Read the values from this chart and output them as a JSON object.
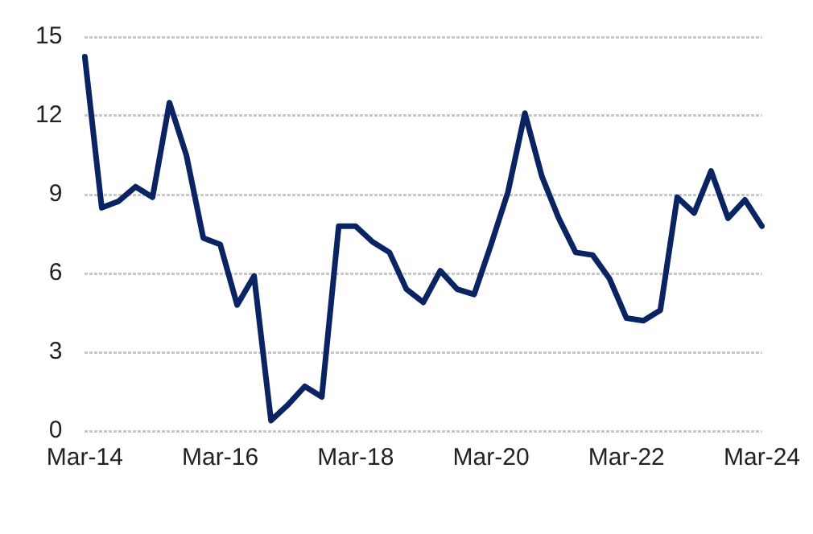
{
  "chart_data": {
    "type": "line",
    "categories": [
      "Mar-14",
      null,
      null,
      null,
      null,
      null,
      null,
      null,
      "Mar-16",
      null,
      null,
      null,
      null,
      null,
      null,
      null,
      "Mar-18",
      null,
      null,
      null,
      null,
      null,
      null,
      null,
      "Mar-20",
      null,
      null,
      null,
      null,
      null,
      null,
      null,
      "Mar-22",
      null,
      null,
      null,
      null,
      null,
      null,
      null,
      "Mar-24"
    ],
    "series": [
      {
        "color": "#0a2463",
        "values": [
          14.25,
          8.5,
          8.75,
          9.3,
          8.9,
          12.5,
          10.5,
          7.35,
          7.1,
          4.8,
          5.9,
          0.4,
          1.0,
          1.7,
          1.3,
          7.8,
          7.8,
          7.2,
          6.8,
          5.4,
          4.9,
          6.1,
          5.4,
          5.2,
          7.1,
          9.1,
          12.1,
          9.7,
          8.1,
          6.8,
          6.7,
          5.8,
          4.3,
          4.2,
          4.6,
          8.9,
          8.3,
          9.9,
          8.1,
          8.8,
          7.8
        ]
      }
    ],
    "ylim": [
      0,
      15
    ],
    "yticks": [
      0,
      3,
      6,
      9,
      12,
      15
    ],
    "grid": "y",
    "legend": false,
    "marker": "none",
    "line_style": "solid"
  }
}
